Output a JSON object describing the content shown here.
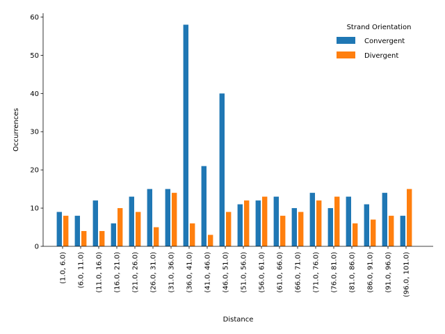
{
  "chart_data": {
    "type": "bar",
    "xlabel": "Distance",
    "ylabel": "Occurrences",
    "ylim": [
      0,
      61
    ],
    "yticks": [
      0,
      10,
      20,
      30,
      40,
      50,
      60
    ],
    "categories": [
      "(1.0, 6.0)",
      "(6.0, 11.0)",
      "(11.0, 16.0)",
      "(16.0, 21.0)",
      "(21.0, 26.0)",
      "(26.0, 31.0)",
      "(31.0, 36.0)",
      "(36.0, 41.0)",
      "(41.0, 46.0)",
      "(46.0, 51.0)",
      "(51.0, 56.0)",
      "(56.0, 61.0)",
      "(61.0, 66.0)",
      "(66.0, 71.0)",
      "(71.0, 76.0)",
      "(76.0, 81.0)",
      "(81.0, 86.0)",
      "(86.0, 91.0)",
      "(91.0, 96.0)",
      "(96.0, 101.0)"
    ],
    "series": [
      {
        "name": "Convergent",
        "color": "#1f77b4",
        "values": [
          9,
          8,
          12,
          6,
          13,
          15,
          15,
          58,
          21,
          40,
          11,
          12,
          13,
          10,
          14,
          10,
          13,
          11,
          14,
          8
        ]
      },
      {
        "name": "Divergent",
        "color": "#ff7f0e",
        "values": [
          8,
          4,
          4,
          10,
          9,
          5,
          14,
          6,
          3,
          9,
          12,
          13,
          8,
          9,
          12,
          13,
          6,
          7,
          8,
          15
        ]
      }
    ],
    "legend": {
      "title": "Strand Orientation",
      "position": "top-right"
    },
    "grid": false
  }
}
